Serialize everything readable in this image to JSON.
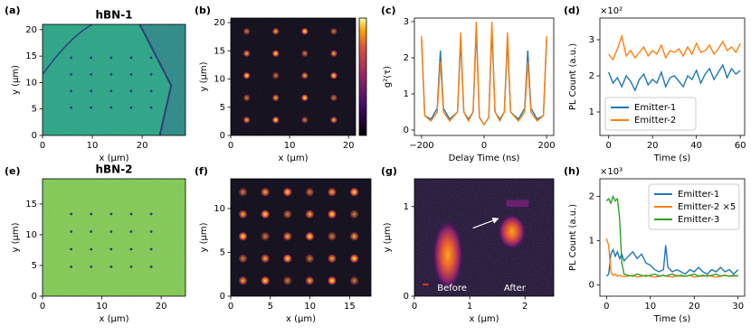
{
  "chart_data": [
    {
      "type": "image",
      "label": "(a)",
      "title": "hBN-1",
      "xlabel": "x (μm)",
      "ylabel": "y (μm)",
      "color": "#2f9e7f",
      "xlim": [
        0,
        28.7
      ],
      "ylim": [
        0,
        21
      ],
      "xticks": [
        0,
        10,
        20
      ],
      "yticks": [
        0,
        5,
        10,
        15,
        20
      ]
    },
    {
      "type": "image",
      "label": "(b)",
      "xlabel": "x (μm)",
      "ylabel": "y (μm)",
      "color": "#0a0614",
      "colorbar": true,
      "xlim": [
        0,
        21.2
      ],
      "ylim": [
        0,
        20.8
      ],
      "xticks": [
        0,
        10,
        20
      ],
      "yticks": [
        0,
        5,
        10,
        15,
        20
      ]
    },
    {
      "type": "line",
      "label": "(c)",
      "xlabel": "Delay Time (ns)",
      "ylabel": "g²(τ)",
      "xlim": [
        -223,
        223
      ],
      "ylim": [
        -0.15,
        3.1
      ],
      "xticks": [
        {
          "value": -200,
          "label": "−200"
        },
        0,
        200
      ],
      "yticks": [
        0,
        1,
        2,
        3
      ],
      "x": [
        -200,
        -190,
        -170,
        -150,
        -140,
        -130,
        -110,
        -85,
        -75,
        -65,
        -50,
        -35,
        -25,
        -15,
        0,
        15,
        25,
        35,
        50,
        65,
        75,
        85,
        110,
        130,
        140,
        150,
        170,
        190,
        200
      ],
      "series": [
        {
          "color": "#1f77b4",
          "values": [
            2.5,
            0.4,
            0.3,
            0.6,
            2.2,
            0.6,
            0.3,
            0.5,
            2.5,
            0.5,
            0.3,
            0.5,
            2.8,
            0.35,
            0.15,
            0.35,
            2.8,
            0.5,
            0.3,
            0.5,
            2.5,
            0.5,
            0.3,
            0.6,
            2.2,
            0.6,
            0.3,
            0.4,
            2.5
          ]
        },
        {
          "color": "#ff7f0e",
          "values": [
            2.6,
            0.4,
            0.25,
            0.5,
            1.9,
            0.5,
            0.25,
            0.5,
            2.7,
            0.5,
            0.25,
            0.5,
            3.0,
            0.35,
            0.15,
            0.35,
            3.0,
            0.5,
            0.25,
            0.5,
            2.7,
            0.5,
            0.25,
            0.5,
            1.9,
            0.5,
            0.25,
            0.4,
            2.6
          ]
        }
      ]
    },
    {
      "type": "line",
      "label": "(d)",
      "xlabel": "Time (s)",
      "ylabel": "PL Count (a.u.)",
      "multiplier": "×10²",
      "legend": "lower left",
      "xlim": [
        -4,
        62
      ],
      "ylim": [
        0.35,
        3.6
      ],
      "xticks": [
        0,
        20,
        40,
        60
      ],
      "yticks": [
        1,
        2,
        3
      ],
      "x": [
        0,
        2,
        4,
        6,
        8,
        10,
        12,
        14,
        16,
        18,
        20,
        22,
        24,
        26,
        28,
        30,
        32,
        34,
        36,
        38,
        40,
        42,
        44,
        46,
        48,
        50,
        52,
        54,
        56,
        58,
        60
      ],
      "series": [
        {
          "name": "Emitter-1",
          "color": "#1f77b4",
          "values": [
            2.1,
            1.8,
            1.95,
            1.7,
            2.0,
            1.85,
            1.6,
            1.9,
            2.05,
            1.75,
            1.9,
            1.8,
            2.1,
            1.7,
            1.95,
            2.0,
            1.85,
            1.7,
            2.0,
            1.9,
            2.15,
            1.8,
            2.05,
            2.2,
            1.9,
            2.1,
            2.3,
            1.95,
            2.2,
            2.05,
            2.15
          ]
        },
        {
          "name": "Emitter-2",
          "color": "#ff7f0e",
          "values": [
            2.6,
            2.45,
            2.75,
            3.1,
            2.55,
            2.7,
            2.5,
            2.65,
            2.8,
            2.55,
            2.7,
            2.6,
            2.85,
            2.5,
            2.7,
            2.65,
            2.75,
            2.55,
            2.8,
            2.6,
            2.9,
            2.65,
            2.7,
            2.85,
            2.6,
            2.75,
            2.95,
            2.7,
            2.8,
            2.65,
            2.9
          ]
        }
      ]
    },
    {
      "type": "image",
      "label": "(e)",
      "title": "hBN-2",
      "xlabel": "x (μm)",
      "ylabel": "y (μm)",
      "color": "#7cc454",
      "xlim": [
        0,
        24.1
      ],
      "ylim": [
        0,
        19.1
      ],
      "xticks": [
        0,
        10,
        20
      ],
      "yticks": [
        0,
        5,
        10,
        15
      ]
    },
    {
      "type": "image",
      "label": "(f)",
      "xlabel": "x (μm)",
      "ylabel": "y (μm)",
      "color": "#0a0614",
      "xlim": [
        0,
        17.7
      ],
      "ylim": [
        0,
        13.4
      ],
      "xticks": [
        0,
        5,
        10,
        15
      ],
      "yticks": [
        0,
        5,
        10
      ]
    },
    {
      "type": "image",
      "label": "(g)",
      "xlabel": "x (μm)",
      "ylabel": "y (μm)",
      "color": "#1a0b30",
      "annotations": [
        "Before",
        "After"
      ],
      "xlim": [
        0,
        2.52
      ],
      "ylim": [
        0,
        1.31
      ],
      "xticks": [
        0,
        1,
        2
      ],
      "yticks": [
        0,
        1
      ]
    },
    {
      "type": "line",
      "label": "(h)",
      "xlabel": "Time (s)",
      "ylabel": "PL Count (a.u.)",
      "multiplier": "×10³",
      "legend": "upper right",
      "xlim": [
        -1.5,
        31.5
      ],
      "ylim": [
        -0.25,
        2.4
      ],
      "xticks": [
        0,
        10,
        20,
        30
      ],
      "yticks": [
        0,
        1,
        2
      ],
      "x": [
        0,
        0.5,
        1,
        1.5,
        2,
        2.5,
        3,
        3.5,
        4,
        5,
        6,
        7,
        8,
        9,
        10,
        11,
        12,
        13,
        13.5,
        14,
        15,
        16,
        17,
        18,
        19,
        20,
        21,
        22,
        23,
        24,
        25,
        26,
        27,
        28,
        29,
        30
      ],
      "series": [
        {
          "name": "Emitter-1",
          "color": "#1f77b4",
          "values": [
            0.2,
            0.25,
            0.7,
            0.8,
            0.65,
            0.75,
            0.6,
            0.7,
            0.55,
            0.65,
            0.75,
            0.6,
            0.7,
            0.5,
            0.45,
            0.35,
            0.3,
            0.35,
            0.9,
            0.4,
            0.3,
            0.35,
            0.3,
            0.25,
            0.35,
            0.3,
            0.4,
            0.3,
            0.25,
            0.35,
            0.3,
            0.4,
            0.3,
            0.35,
            0.25,
            0.35
          ]
        },
        {
          "name": "Emitter-2 ×5",
          "color": "#ff7f0e",
          "values": [
            1.05,
            0.9,
            0.3,
            0.22,
            0.25,
            0.2,
            0.22,
            0.2,
            0.2,
            0.2,
            0.22,
            0.18,
            0.2,
            0.22,
            0.2,
            0.18,
            0.2,
            0.22,
            0.2,
            0.2,
            0.18,
            0.22,
            0.2,
            0.2,
            0.22,
            0.18,
            0.2,
            0.2,
            0.22,
            0.2,
            0.18,
            0.2,
            0.22,
            0.2,
            0.2,
            0.22
          ]
        },
        {
          "name": "Emitter-3",
          "color": "#2ca02c",
          "values": [
            1.9,
            1.95,
            1.85,
            2.0,
            1.9,
            1.95,
            1.5,
            0.5,
            0.25,
            0.22,
            0.2,
            0.25,
            0.22,
            0.2,
            0.22,
            0.25,
            0.2,
            0.22,
            0.2,
            0.22,
            0.25,
            0.2,
            0.22,
            0.2,
            0.22,
            0.25,
            0.2,
            0.22,
            0.2,
            0.22,
            0.25,
            0.2,
            0.22,
            0.2,
            0.22,
            0.2
          ]
        }
      ]
    }
  ]
}
